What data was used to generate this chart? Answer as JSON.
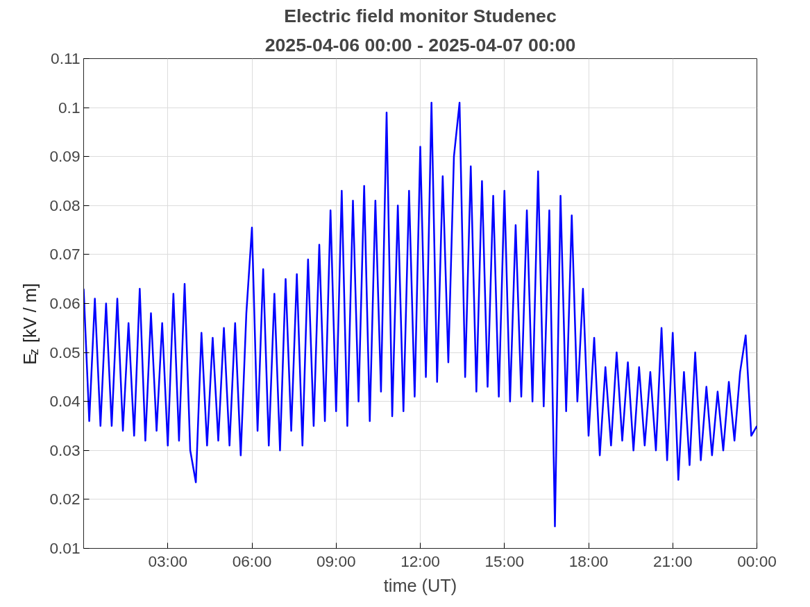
{
  "chart_data": {
    "type": "line",
    "title": "Electric field monitor Studenec",
    "subtitle": "2025-04-06 00:00 - 2025-04-07 00:00",
    "xlabel": "time (UT)",
    "ylabel": "E$_{z}$ [kV / m]",
    "xlim": [
      0,
      24
    ],
    "xticks": [
      {
        "value": 3,
        "label": "03:00"
      },
      {
        "value": 6,
        "label": "06:00"
      },
      {
        "value": 9,
        "label": "09:00"
      },
      {
        "value": 12,
        "label": "12:00"
      },
      {
        "value": 15,
        "label": "15:00"
      },
      {
        "value": 18,
        "label": "18:00"
      },
      {
        "value": 21,
        "label": "21:00"
      },
      {
        "value": 24,
        "label": "00:00"
      }
    ],
    "ylim": [
      0.01,
      0.11
    ],
    "yticks": [
      0.01,
      0.02,
      0.03,
      0.04,
      0.05,
      0.06,
      0.07,
      0.08,
      0.09,
      0.1,
      0.11
    ],
    "grid": true,
    "marker": "none",
    "line_style": "solid",
    "x": [
      0,
      0.2,
      0.4,
      0.6,
      0.8,
      1,
      1.2,
      1.4,
      1.6,
      1.8,
      2,
      2.2,
      2.4,
      2.6,
      2.8,
      3,
      3.2,
      3.4,
      3.6,
      3.8,
      4,
      4.2,
      4.4,
      4.6,
      4.8,
      5,
      5.2,
      5.4,
      5.6,
      5.8,
      6,
      6.2,
      6.4,
      6.6,
      6.8,
      7,
      7.2,
      7.4,
      7.6,
      7.8,
      8,
      8.2,
      8.4,
      8.6,
      8.8,
      9,
      9.2,
      9.4,
      9.6,
      9.8,
      10,
      10.2,
      10.4,
      10.6,
      10.8,
      11,
      11.2,
      11.4,
      11.6,
      11.8,
      12,
      12.2,
      12.4,
      12.6,
      12.8,
      13,
      13.2,
      13.4,
      13.6,
      13.8,
      14,
      14.2,
      14.4,
      14.6,
      14.8,
      15,
      15.2,
      15.4,
      15.6,
      15.8,
      16,
      16.2,
      16.4,
      16.6,
      16.8,
      17,
      17.2,
      17.4,
      17.6,
      17.8,
      18,
      18.2,
      18.4,
      18.6,
      18.8,
      19,
      19.2,
      19.4,
      19.6,
      19.8,
      20,
      20.2,
      20.4,
      20.6,
      20.8,
      21,
      21.2,
      21.4,
      21.6,
      21.8,
      22,
      22.2,
      22.4,
      22.6,
      22.8,
      23,
      23.2,
      23.4,
      23.6,
      23.8,
      24
    ],
    "series": [
      {
        "color": "#0000ff",
        "values": [
          0.063,
          0.036,
          0.061,
          0.035,
          0.06,
          0.035,
          0.061,
          0.034,
          0.056,
          0.033,
          0.063,
          0.032,
          0.058,
          0.034,
          0.056,
          0.031,
          0.062,
          0.032,
          0.064,
          0.03,
          0.0235,
          0.054,
          0.031,
          0.053,
          0.032,
          0.055,
          0.031,
          0.056,
          0.029,
          0.058,
          0.0755,
          0.034,
          0.067,
          0.031,
          0.062,
          0.03,
          0.065,
          0.034,
          0.066,
          0.031,
          0.069,
          0.035,
          0.072,
          0.036,
          0.079,
          0.038,
          0.083,
          0.035,
          0.081,
          0.04,
          0.084,
          0.036,
          0.081,
          0.042,
          0.099,
          0.037,
          0.08,
          0.038,
          0.083,
          0.041,
          0.092,
          0.045,
          0.101,
          0.044,
          0.086,
          0.048,
          0.09,
          0.101,
          0.045,
          0.088,
          0.042,
          0.085,
          0.043,
          0.082,
          0.041,
          0.083,
          0.04,
          0.076,
          0.041,
          0.079,
          0.04,
          0.087,
          0.039,
          0.079,
          0.0145,
          0.082,
          0.038,
          0.078,
          0.04,
          0.063,
          0.033,
          0.053,
          0.029,
          0.047,
          0.031,
          0.05,
          0.032,
          0.048,
          0.03,
          0.047,
          0.031,
          0.046,
          0.03,
          0.055,
          0.028,
          0.054,
          0.024,
          0.046,
          0.027,
          0.05,
          0.028,
          0.043,
          0.029,
          0.042,
          0.03,
          0.044,
          0.032,
          0.046,
          0.0535,
          0.033,
          0.035
        ]
      }
    ]
  }
}
